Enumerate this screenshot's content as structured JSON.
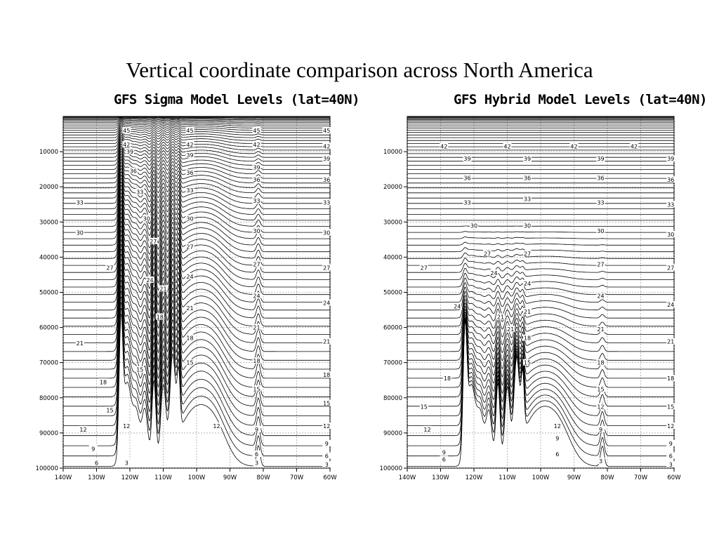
{
  "slide_title": "Vertical coordinate comparison across North America",
  "chart_data": [
    {
      "type": "line",
      "title": "GFS Sigma Model Levels (lat=40N)",
      "y_ticks": [
        "10000",
        "20000",
        "30000",
        "40000",
        "50000",
        "60000",
        "70000",
        "80000",
        "90000",
        "100000"
      ],
      "x_ticks": [
        "140W",
        "130W",
        "120W",
        "110W",
        "100W",
        "90W",
        "80W",
        "70W",
        "60W"
      ],
      "ylim": [
        100000,
        0
      ],
      "xlim": [
        -140,
        -60
      ],
      "grid": true,
      "levels_drawn": 64,
      "level_labels": [
        {
          "text": "33",
          "x": -135,
          "y": 24500
        },
        {
          "text": "30",
          "x": -135,
          "y": 33000
        },
        {
          "text": "27",
          "x": -126,
          "y": 43000
        },
        {
          "text": "21",
          "x": -135,
          "y": 64500
        },
        {
          "text": "18",
          "x": -128,
          "y": 75500
        },
        {
          "text": "15",
          "x": -126,
          "y": 83500
        },
        {
          "text": "12",
          "x": -134,
          "y": 89000
        },
        {
          "text": "9",
          "x": -131,
          "y": 94500
        },
        {
          "text": "6",
          "x": -130,
          "y": 98500
        },
        {
          "text": "45",
          "x": -121,
          "y": 4000
        },
        {
          "text": "42",
          "x": -121,
          "y": 8000
        },
        {
          "text": "39",
          "x": -120,
          "y": 10000
        },
        {
          "text": "36",
          "x": -119,
          "y": 15500
        },
        {
          "text": "33",
          "x": -117,
          "y": 21500
        },
        {
          "text": "30",
          "x": -115,
          "y": 29000
        },
        {
          "text": "27",
          "x": -113,
          "y": 35500
        },
        {
          "text": "24",
          "x": -114,
          "y": 46500
        },
        {
          "text": "21",
          "x": -110,
          "y": 49000
        },
        {
          "text": "18",
          "x": -111,
          "y": 57000
        },
        {
          "text": "15",
          "x": -117,
          "y": 72000
        },
        {
          "text": "12",
          "x": -121,
          "y": 88000
        },
        {
          "text": "3",
          "x": -121,
          "y": 98500
        },
        {
          "text": "45",
          "x": -102,
          "y": 4000
        },
        {
          "text": "42",
          "x": -102,
          "y": 8000
        },
        {
          "text": "39",
          "x": -102,
          "y": 11000
        },
        {
          "text": "36",
          "x": -102,
          "y": 16000
        },
        {
          "text": "33",
          "x": -102,
          "y": 21000
        },
        {
          "text": "30",
          "x": -102,
          "y": 29000
        },
        {
          "text": "27",
          "x": -102,
          "y": 37000
        },
        {
          "text": "24",
          "x": -102,
          "y": 45500
        },
        {
          "text": "21",
          "x": -102,
          "y": 54500
        },
        {
          "text": "18",
          "x": -102,
          "y": 63000
        },
        {
          "text": "15",
          "x": -102,
          "y": 70000
        },
        {
          "text": "45",
          "x": -82,
          "y": 4000
        },
        {
          "text": "42",
          "x": -82,
          "y": 8000
        },
        {
          "text": "39",
          "x": -82,
          "y": 14500
        },
        {
          "text": "36",
          "x": -82,
          "y": 18000
        },
        {
          "text": "33",
          "x": -82,
          "y": 24000
        },
        {
          "text": "30",
          "x": -82,
          "y": 32500
        },
        {
          "text": "27",
          "x": -82,
          "y": 42000
        },
        {
          "text": "24",
          "x": -82,
          "y": 51000
        },
        {
          "text": "21",
          "x": -82,
          "y": 60000
        },
        {
          "text": "18",
          "x": -82,
          "y": 69500
        },
        {
          "text": "15",
          "x": -82,
          "y": 77500
        },
        {
          "text": "12",
          "x": -94,
          "y": 88000
        },
        {
          "text": "9",
          "x": -82,
          "y": 89000
        },
        {
          "text": "6",
          "x": -82,
          "y": 96000
        },
        {
          "text": "3",
          "x": -82,
          "y": 98500
        },
        {
          "text": "45",
          "x": -61,
          "y": 4000
        },
        {
          "text": "42",
          "x": -61,
          "y": 8500
        },
        {
          "text": "39",
          "x": -61,
          "y": 12000
        },
        {
          "text": "36",
          "x": -61,
          "y": 18000
        },
        {
          "text": "33",
          "x": -61,
          "y": 24500
        },
        {
          "text": "30",
          "x": -61,
          "y": 33000
        },
        {
          "text": "27",
          "x": -61,
          "y": 43000
        },
        {
          "text": "24",
          "x": -61,
          "y": 53000
        },
        {
          "text": "21",
          "x": -61,
          "y": 64000
        },
        {
          "text": "18",
          "x": -61,
          "y": 73500
        },
        {
          "text": "15",
          "x": -61,
          "y": 81500
        },
        {
          "text": "12",
          "x": -61,
          "y": 88000
        },
        {
          "text": "9",
          "x": -61,
          "y": 93000
        },
        {
          "text": "6",
          "x": -61,
          "y": 96500
        },
        {
          "text": "3",
          "x": -61,
          "y": 99000
        }
      ]
    },
    {
      "type": "line",
      "title": "GFS Hybrid Model Levels (lat=40N)",
      "y_ticks": [
        "10000",
        "20000",
        "30000",
        "40000",
        "50000",
        "60000",
        "70000",
        "80000",
        "90000",
        "100000"
      ],
      "x_ticks": [
        "140W",
        "130W",
        "120W",
        "110W",
        "100W",
        "90W",
        "80W",
        "70W",
        "60W"
      ],
      "ylim": [
        100000,
        0
      ],
      "xlim": [
        -140,
        -60
      ],
      "grid": true,
      "levels_drawn": 64,
      "level_labels": [
        {
          "text": "42",
          "x": -129,
          "y": 8500
        },
        {
          "text": "42",
          "x": -110,
          "y": 8500
        },
        {
          "text": "42",
          "x": -90,
          "y": 8500
        },
        {
          "text": "42",
          "x": -72,
          "y": 8500
        },
        {
          "text": "39",
          "x": -122,
          "y": 12000
        },
        {
          "text": "36",
          "x": -122,
          "y": 17500
        },
        {
          "text": "33",
          "x": -122,
          "y": 24500
        },
        {
          "text": "30",
          "x": -120,
          "y": 31000
        },
        {
          "text": "27",
          "x": -135,
          "y": 43000
        },
        {
          "text": "27",
          "x": -116,
          "y": 39000
        },
        {
          "text": "24",
          "x": -125,
          "y": 54000
        },
        {
          "text": "24",
          "x": -114,
          "y": 44500
        },
        {
          "text": "21",
          "x": -112,
          "y": 57000
        },
        {
          "text": "21",
          "x": -109,
          "y": 60500
        },
        {
          "text": "18",
          "x": -128,
          "y": 74500
        },
        {
          "text": "15",
          "x": -135,
          "y": 82500
        },
        {
          "text": "12",
          "x": -134,
          "y": 89000
        },
        {
          "text": "9",
          "x": -129,
          "y": 95500
        },
        {
          "text": "6",
          "x": -129,
          "y": 97500
        },
        {
          "text": "39",
          "x": -104,
          "y": 12000
        },
        {
          "text": "36",
          "x": -104,
          "y": 17500
        },
        {
          "text": "33",
          "x": -104,
          "y": 23500
        },
        {
          "text": "30",
          "x": -104,
          "y": 31000
        },
        {
          "text": "27",
          "x": -104,
          "y": 39000
        },
        {
          "text": "24",
          "x": -104,
          "y": 47500
        },
        {
          "text": "21",
          "x": -104,
          "y": 55500
        },
        {
          "text": "18",
          "x": -104,
          "y": 63000
        },
        {
          "text": "15",
          "x": -104,
          "y": 70000
        },
        {
          "text": "39",
          "x": -82,
          "y": 12000
        },
        {
          "text": "36",
          "x": -82,
          "y": 17500
        },
        {
          "text": "33",
          "x": -82,
          "y": 24500
        },
        {
          "text": "30",
          "x": -82,
          "y": 32500
        },
        {
          "text": "27",
          "x": -82,
          "y": 42000
        },
        {
          "text": "24",
          "x": -82,
          "y": 51000
        },
        {
          "text": "21",
          "x": -82,
          "y": 60500
        },
        {
          "text": "18",
          "x": -82,
          "y": 70000
        },
        {
          "text": "15",
          "x": -82,
          "y": 77500
        },
        {
          "text": "12",
          "x": -82,
          "y": 82500
        },
        {
          "text": "12",
          "x": -95,
          "y": 88000
        },
        {
          "text": "9",
          "x": -82,
          "y": 89000
        },
        {
          "text": "9",
          "x": -95,
          "y": 91500
        },
        {
          "text": "6",
          "x": -95,
          "y": 96000
        },
        {
          "text": "3",
          "x": -82,
          "y": 98000
        },
        {
          "text": "39",
          "x": -61,
          "y": 12000
        },
        {
          "text": "36",
          "x": -61,
          "y": 18000
        },
        {
          "text": "33",
          "x": -61,
          "y": 25000
        },
        {
          "text": "30",
          "x": -61,
          "y": 33500
        },
        {
          "text": "27",
          "x": -61,
          "y": 43000
        },
        {
          "text": "24",
          "x": -61,
          "y": 53500
        },
        {
          "text": "21",
          "x": -61,
          "y": 64000
        },
        {
          "text": "18",
          "x": -61,
          "y": 74500
        },
        {
          "text": "15",
          "x": -61,
          "y": 82500
        },
        {
          "text": "12",
          "x": -61,
          "y": 88000
        },
        {
          "text": "9",
          "x": -61,
          "y": 93000
        },
        {
          "text": "6",
          "x": -61,
          "y": 96500
        },
        {
          "text": "3",
          "x": -61,
          "y": 99000
        }
      ]
    }
  ]
}
